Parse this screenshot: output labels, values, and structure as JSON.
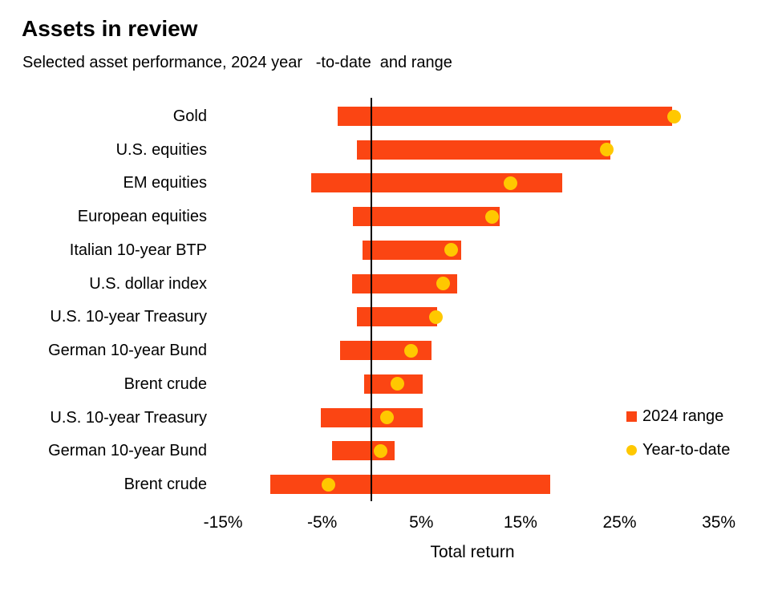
{
  "header": {
    "title": "Assets in review",
    "subtitle": "Selected asset performance, 2024 year   -to-date  and range"
  },
  "chart_data": {
    "type": "bar",
    "variant": "horizontal-range-with-dot",
    "title": "Assets in review",
    "subtitle": "Selected asset performance, 2024 year-to-date and range",
    "xlabel": "Total return",
    "unit": "%",
    "xlim": [
      -16.5,
      37
    ],
    "zero_line": 0,
    "grid": false,
    "legend_position": "right-middle",
    "x_ticks": [
      {
        "label": "-15%",
        "value": -15
      },
      {
        "label": "-5%",
        "value": -5
      },
      {
        "label": "5%",
        "value": 5
      },
      {
        "label": "15%",
        "value": 15
      },
      {
        "label": "25%",
        "value": 25
      },
      {
        "label": "35%",
        "value": 35
      }
    ],
    "colors": {
      "range_bar": "#fb4513",
      "ytd_dot": "#ffc800",
      "zero_line": "#000000",
      "text": "#000000"
    },
    "legend": [
      {
        "label": "2024 range",
        "marker": "square",
        "color": "#fb4513"
      },
      {
        "label": "Year-to-date",
        "marker": "circle",
        "color": "#ffc800"
      }
    ],
    "rows": [
      {
        "label": "Gold",
        "range": [
          -3.4,
          30.3
        ],
        "ytd": 30.5
      },
      {
        "label": "U.S. equities",
        "range": [
          -1.5,
          24.1
        ],
        "ytd": 23.7
      },
      {
        "label": "EM equities",
        "range": [
          -6.1,
          19.2
        ],
        "ytd": 14.0
      },
      {
        "label": "European equities",
        "range": [
          -1.9,
          12.9
        ],
        "ytd": 12.1
      },
      {
        "label": "Italian 10-year BTP",
        "range": [
          -0.9,
          9.0
        ],
        "ytd": 8.0
      },
      {
        "label": "U.S. dollar index",
        "range": [
          -2.0,
          8.6
        ],
        "ytd": 7.2
      },
      {
        "label": "U.S. 10-year Treasury",
        "range": [
          -1.5,
          6.6
        ],
        "ytd": 6.5
      },
      {
        "label": "German 10-year Bund",
        "range": [
          -3.2,
          6.0
        ],
        "ytd": 4.0
      },
      {
        "label": "Brent crude",
        "range": [
          -0.8,
          5.1
        ],
        "ytd": 2.6
      },
      {
        "label": "U.S. 10-year Treasury",
        "range": [
          -5.1,
          5.1
        ],
        "ytd": 1.5
      },
      {
        "label": "German 10-year Bund",
        "range": [
          -4.0,
          2.3
        ],
        "ytd": 0.9
      },
      {
        "label": "Brent crude",
        "range": [
          -10.2,
          18.0
        ],
        "ytd": -4.4
      }
    ]
  }
}
